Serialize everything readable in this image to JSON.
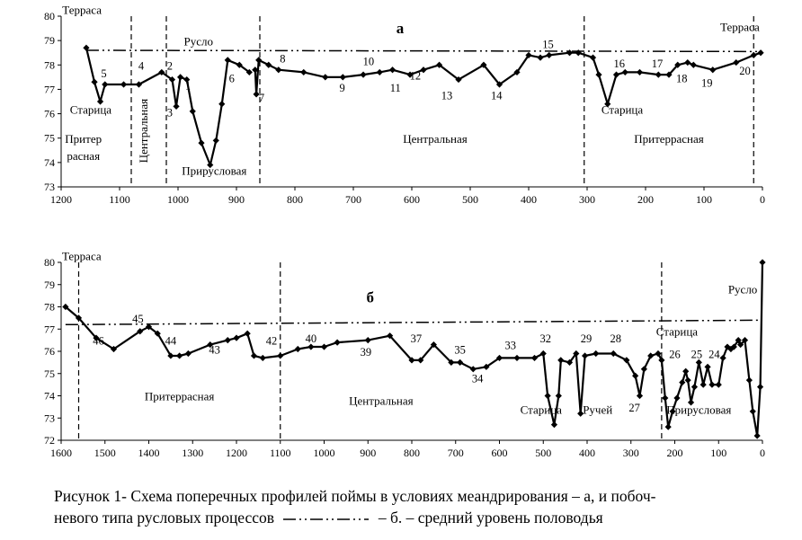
{
  "colors": {
    "line": "#000000",
    "marker": "#000000",
    "axis": "#000000",
    "background": "#ffffff"
  },
  "caption": {
    "line1": "Рисунок 1- Схема поперечных профилей поймы в условиях меандрирования – а, и побоч-",
    "line2_a": "невого типа русловых процессов",
    "line2_b": "– б.  – средний уровень половодья"
  },
  "chart_data": [
    {
      "type": "line",
      "panel_label": "а",
      "x_axis": {
        "range": [
          1200,
          0
        ],
        "reversed": true,
        "ticks": [
          1200,
          1100,
          1000,
          900,
          800,
          700,
          600,
          500,
          400,
          300,
          200,
          100,
          0
        ]
      },
      "y_axis": {
        "range": [
          73,
          80
        ],
        "ticks": [
          73,
          74,
          75,
          76,
          77,
          78,
          79,
          80
        ]
      },
      "grid": false,
      "series": [
        {
          "style": "solid-with-diamond-markers",
          "segments": [
            [
              [
                1157,
                78.7
              ],
              [
                1143,
                77.3
              ],
              [
                1133,
                76.5
              ],
              [
                1125,
                77.2
              ],
              [
                1093,
                77.2
              ],
              [
                1067,
                77.2
              ],
              [
                1028,
                77.7
              ],
              [
                1010,
                77.4
              ],
              [
                1003,
                76.3
              ],
              [
                996,
                77.5
              ],
              [
                985,
                77.4
              ],
              [
                975,
                76.1
              ],
              [
                960,
                74.8
              ],
              [
                945,
                73.9
              ],
              [
                935,
                74.9
              ],
              [
                925,
                76.4
              ],
              [
                915,
                78.2
              ],
              [
                895,
                78.0
              ],
              [
                878,
                77.7
              ]
            ],
            [
              [
                868,
                77.8
              ],
              [
                866,
                76.8
              ],
              [
                862,
                78.2
              ],
              [
                845,
                78.0
              ],
              [
                828,
                77.8
              ],
              [
                785,
                77.7
              ],
              [
                748,
                77.5
              ],
              [
                718,
                77.5
              ],
              [
                683,
                77.6
              ],
              [
                655,
                77.7
              ],
              [
                633,
                77.8
              ],
              [
                603,
                77.6
              ],
              [
                580,
                77.8
              ],
              [
                553,
                78.0
              ],
              [
                520,
                77.4
              ],
              [
                477,
                78.0
              ],
              [
                450,
                77.2
              ],
              [
                420,
                77.7
              ],
              [
                400,
                78.4
              ],
              [
                380,
                78.3
              ],
              [
                365,
                78.4
              ],
              [
                330,
                78.5
              ],
              [
                315,
                78.5
              ],
              [
                290,
                78.3
              ],
              [
                280,
                77.6
              ],
              [
                265,
                76.4
              ],
              [
                250,
                77.6
              ],
              [
                235,
                77.7
              ],
              [
                210,
                77.7
              ],
              [
                178,
                77.6
              ],
              [
                160,
                77.6
              ],
              [
                145,
                78.0
              ],
              [
                128,
                78.1
              ],
              [
                118,
                78.0
              ],
              [
                85,
                77.8
              ],
              [
                45,
                78.1
              ],
              [
                15,
                78.4
              ],
              [
                3,
                78.5
              ]
            ]
          ]
        },
        {
          "style": "dash-dot-dot",
          "values": [
            [
              1157,
              78.6
            ],
            [
              0,
              78.55
            ]
          ]
        }
      ],
      "boundaries_x": [
        1080,
        1020,
        860,
        305,
        15
      ],
      "point_labels": [
        {
          "text": "1",
          "x": 983,
          "y": 77.0
        },
        {
          "text": "2",
          "x": 1014,
          "y": 77.8
        },
        {
          "text": "3",
          "x": 1014,
          "y": 75.9
        },
        {
          "text": "4",
          "x": 1063,
          "y": 77.8
        },
        {
          "text": "5",
          "x": 1127,
          "y": 77.5
        },
        {
          "text": "6",
          "x": 908,
          "y": 77.3
        },
        {
          "text": "7",
          "x": 857,
          "y": 76.5
        },
        {
          "text": "8",
          "x": 821,
          "y": 78.1
        },
        {
          "text": "9",
          "x": 719,
          "y": 76.9
        },
        {
          "text": "10",
          "x": 674,
          "y": 78.0
        },
        {
          "text": "11",
          "x": 628,
          "y": 76.9
        },
        {
          "text": "12",
          "x": 594,
          "y": 77.4
        },
        {
          "text": "13",
          "x": 540,
          "y": 76.6
        },
        {
          "text": "14",
          "x": 455,
          "y": 76.6
        },
        {
          "text": "15",
          "x": 367,
          "y": 78.7
        },
        {
          "text": "16",
          "x": 245,
          "y": 77.9
        },
        {
          "text": "17",
          "x": 180,
          "y": 77.9
        },
        {
          "text": "18",
          "x": 138,
          "y": 77.3
        },
        {
          "text": "19",
          "x": 95,
          "y": 77.1
        },
        {
          "text": "20",
          "x": 30,
          "y": 77.6
        }
      ],
      "annotations": [
        {
          "text": "Терраса",
          "x": 1198,
          "y": 80.1,
          "anchor": "start"
        },
        {
          "text": "Русло",
          "x": 990,
          "y": 78.8,
          "anchor": "start"
        },
        {
          "text": "а",
          "x": 620,
          "y": 79.3,
          "anchor": "middle",
          "bold": true
        },
        {
          "text": "Терраса",
          "x": 5,
          "y": 79.4,
          "anchor": "end"
        },
        {
          "text": "Старица",
          "x": 1185,
          "y": 76.0,
          "anchor": "start"
        },
        {
          "text": "Притер",
          "x": 1162,
          "y": 74.8,
          "anchor": "middle"
        },
        {
          "text": "расная",
          "x": 1162,
          "y": 74.1,
          "anchor": "middle"
        },
        {
          "text": "Прирусловая",
          "x": 938,
          "y": 73.5,
          "anchor": "middle"
        },
        {
          "text": "Центральная",
          "x": 560,
          "y": 74.8,
          "anchor": "middle"
        },
        {
          "text": "Старица",
          "x": 240,
          "y": 76.0,
          "anchor": "middle"
        },
        {
          "text": "Притеррасная",
          "x": 160,
          "y": 74.8,
          "anchor": "middle"
        }
      ],
      "vertical_annotations": [
        {
          "text": "Центральная",
          "x": 1052,
          "y": 75.3
        }
      ]
    },
    {
      "type": "line",
      "panel_label": "б",
      "x_axis": {
        "range": [
          1600,
          0
        ],
        "reversed": true,
        "ticks": [
          1600,
          1500,
          1400,
          1300,
          1200,
          1100,
          1000,
          900,
          800,
          700,
          600,
          500,
          400,
          300,
          200,
          100,
          0
        ]
      },
      "y_axis": {
        "range": [
          72,
          80
        ],
        "ticks": [
          72,
          73,
          74,
          75,
          76,
          77,
          78,
          79,
          80
        ]
      },
      "grid": false,
      "series": [
        {
          "style": "solid-with-diamond-markers",
          "segments": [
            [
              [
                1590,
                78.0
              ],
              [
                1560,
                77.5
              ],
              [
                1520,
                76.6
              ],
              [
                1480,
                76.1
              ],
              [
                1420,
                76.9
              ],
              [
                1400,
                77.1
              ],
              [
                1380,
                76.8
              ],
              [
                1350,
                75.8
              ],
              [
                1330,
                75.8
              ],
              [
                1310,
                75.9
              ],
              [
                1260,
                76.3
              ],
              [
                1220,
                76.5
              ],
              [
                1200,
                76.6
              ],
              [
                1175,
                76.8
              ],
              [
                1160,
                75.8
              ],
              [
                1140,
                75.7
              ],
              [
                1100,
                75.8
              ],
              [
                1060,
                76.1
              ],
              [
                1030,
                76.2
              ],
              [
                1000,
                76.2
              ],
              [
                970,
                76.4
              ],
              [
                900,
                76.5
              ],
              [
                850,
                76.7
              ],
              [
                800,
                75.6
              ],
              [
                780,
                75.6
              ],
              [
                750,
                76.3
              ],
              [
                710,
                75.5
              ],
              [
                690,
                75.5
              ],
              [
                660,
                75.2
              ],
              [
                630,
                75.3
              ],
              [
                600,
                75.7
              ],
              [
                560,
                75.7
              ],
              [
                520,
                75.7
              ],
              [
                500,
                75.9
              ],
              [
                490,
                74.0
              ],
              [
                475,
                72.7
              ],
              [
                465,
                74.0
              ],
              [
                460,
                75.6
              ],
              [
                440,
                75.5
              ],
              [
                425,
                75.9
              ],
              [
                415,
                73.2
              ],
              [
                405,
                75.8
              ],
              [
                380,
                75.9
              ],
              [
                340,
                75.9
              ],
              [
                310,
                75.6
              ],
              [
                290,
                74.9
              ],
              [
                280,
                74.0
              ],
              [
                270,
                75.2
              ],
              [
                255,
                75.8
              ],
              [
                238,
                75.9
              ],
              [
                230,
                75.6
              ],
              [
                222,
                73.9
              ],
              [
                215,
                72.6
              ],
              [
                205,
                73.3
              ],
              [
                195,
                73.9
              ],
              [
                183,
                74.6
              ],
              [
                175,
                75.1
              ],
              [
                170,
                74.7
              ],
              [
                163,
                73.7
              ],
              [
                155,
                74.4
              ],
              [
                145,
                75.5
              ],
              [
                135,
                74.5
              ],
              [
                125,
                75.3
              ],
              [
                115,
                74.5
              ],
              [
                100,
                74.5
              ],
              [
                90,
                75.7
              ],
              [
                80,
                76.2
              ],
              [
                72,
                76.1
              ],
              [
                65,
                76.2
              ],
              [
                55,
                76.5
              ],
              [
                50,
                76.3
              ],
              [
                40,
                76.5
              ],
              [
                30,
                74.7
              ],
              [
                22,
                73.3
              ],
              [
                12,
                72.2
              ],
              [
                5,
                74.4
              ],
              [
                0,
                80.0
              ]
            ]
          ]
        },
        {
          "style": "dash-dot-dot",
          "values": [
            [
              1590,
              77.2
            ],
            [
              0,
              77.4
            ]
          ]
        }
      ],
      "boundaries_x": [
        1560,
        1100,
        230
      ],
      "point_labels": [
        {
          "text": "46",
          "x": 1515,
          "y": 76.3
        },
        {
          "text": "45",
          "x": 1425,
          "y": 77.3
        },
        {
          "text": "44",
          "x": 1350,
          "y": 76.3
        },
        {
          "text": "43",
          "x": 1250,
          "y": 75.9
        },
        {
          "text": "42",
          "x": 1120,
          "y": 76.3
        },
        {
          "text": "40",
          "x": 1030,
          "y": 76.4
        },
        {
          "text": "39",
          "x": 905,
          "y": 75.8
        },
        {
          "text": "37",
          "x": 790,
          "y": 76.4
        },
        {
          "text": "35",
          "x": 690,
          "y": 75.9
        },
        {
          "text": "34",
          "x": 650,
          "y": 74.6
        },
        {
          "text": "33",
          "x": 575,
          "y": 76.1
        },
        {
          "text": "32",
          "x": 495,
          "y": 76.4
        },
        {
          "text": "29",
          "x": 402,
          "y": 76.4
        },
        {
          "text": "28",
          "x": 335,
          "y": 76.4
        },
        {
          "text": "27",
          "x": 292,
          "y": 73.3
        },
        {
          "text": "26",
          "x": 200,
          "y": 75.7
        },
        {
          "text": "25",
          "x": 150,
          "y": 75.7
        },
        {
          "text": "24",
          "x": 110,
          "y": 75.7
        }
      ],
      "annotations": [
        {
          "text": "Терраса",
          "x": 1598,
          "y": 80.1,
          "anchor": "start"
        },
        {
          "text": "б",
          "x": 895,
          "y": 78.2,
          "anchor": "middle",
          "bold": true
        },
        {
          "text": "Русло",
          "x": 45,
          "y": 78.6,
          "anchor": "middle"
        },
        {
          "text": "Старица",
          "x": 195,
          "y": 76.7,
          "anchor": "middle"
        },
        {
          "text": "Притеррасная",
          "x": 1330,
          "y": 73.8,
          "anchor": "middle"
        },
        {
          "text": "Центральная",
          "x": 870,
          "y": 73.6,
          "anchor": "middle"
        },
        {
          "text": "Старица",
          "x": 505,
          "y": 73.2,
          "anchor": "middle"
        },
        {
          "text": "Ручей",
          "x": 376,
          "y": 73.2,
          "anchor": "middle"
        },
        {
          "text": "Прирусловая",
          "x": 145,
          "y": 73.2,
          "anchor": "middle"
        }
      ],
      "vertical_annotations": []
    }
  ]
}
